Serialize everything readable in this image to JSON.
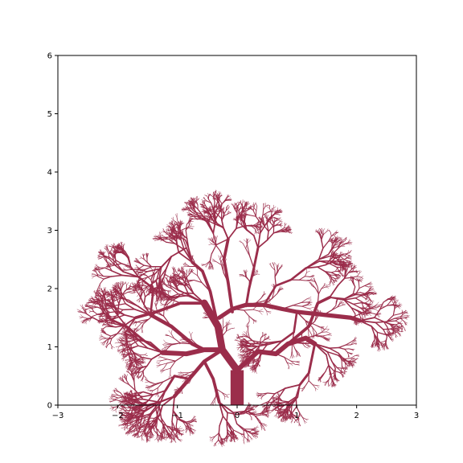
{
  "chart_data": {
    "type": "line",
    "title": "",
    "xlabel": "",
    "ylabel": "",
    "xlim": [
      -3,
      3
    ],
    "ylim": [
      0,
      6
    ],
    "x_ticks": [
      -3,
      -2,
      -1,
      0,
      1,
      2,
      3
    ],
    "x_tick_labels": [
      "−3",
      "−2",
      "−1",
      "0",
      "1",
      "2",
      "3"
    ],
    "y_ticks": [
      0,
      1,
      2,
      3,
      4,
      5,
      6
    ],
    "y_tick_labels": [
      "0",
      "1",
      "2",
      "3",
      "4",
      "5",
      "6"
    ],
    "grid": false,
    "legend": "none",
    "color": "#9b2d4b",
    "trunk": {
      "x": [
        0,
        0
      ],
      "y": [
        0,
        0.6
      ],
      "width": 0.22
    },
    "main_branches": [
      {
        "x": [
          0.0,
          -0.25,
          -0.32,
          -0.55
        ],
        "y": [
          0.6,
          0.95,
          1.35,
          1.75
        ],
        "width": 0.12
      },
      {
        "x": [
          -0.25,
          -0.55,
          -0.85,
          -1.25
        ],
        "y": [
          0.95,
          0.95,
          0.88,
          0.9
        ],
        "width": 0.08
      },
      {
        "x": [
          -0.55,
          -0.75,
          -1.1,
          -1.45
        ],
        "y": [
          0.95,
          1.05,
          1.35,
          1.55
        ],
        "width": 0.06
      },
      {
        "x": [
          -0.3,
          -0.08,
          0.15,
          0.45,
          0.75,
          1.0,
          1.45,
          1.9,
          2.05
        ],
        "y": [
          1.5,
          1.65,
          1.72,
          1.72,
          1.65,
          1.6,
          1.55,
          1.5,
          1.45
        ],
        "width": 0.07
      },
      {
        "x": [
          0.0,
          0.35,
          0.65,
          0.85,
          1.15,
          1.3
        ],
        "y": [
          0.6,
          0.92,
          0.88,
          1.05,
          1.15,
          1.05
        ],
        "width": 0.08
      },
      {
        "x": [
          0.85,
          1.2,
          1.35,
          1.55
        ],
        "y": [
          1.05,
          1.35,
          1.75,
          1.85
        ],
        "width": 0.05
      },
      {
        "x": [
          1.3,
          1.2,
          1.05
        ],
        "y": [
          1.05,
          0.55,
          0.35
        ],
        "width": 0.04
      },
      {
        "x": [
          -0.32,
          -0.45,
          -0.58,
          -0.75
        ],
        "y": [
          1.35,
          1.95,
          2.3,
          2.45
        ],
        "width": 0.05
      },
      {
        "x": [
          -0.08,
          -0.15,
          -0.22,
          -0.15
        ],
        "y": [
          1.6,
          2.1,
          2.5,
          2.85
        ],
        "width": 0.05
      },
      {
        "x": [
          0.15,
          0.2,
          0.28,
          0.35
        ],
        "y": [
          1.7,
          2.0,
          2.35,
          2.7
        ],
        "width": 0.04
      },
      {
        "x": [
          -0.55,
          -0.95,
          -1.35,
          -1.7
        ],
        "y": [
          1.75,
          1.75,
          1.6,
          1.5
        ],
        "width": 0.05
      },
      {
        "x": [
          -1.25,
          -1.55,
          -1.85
        ],
        "y": [
          0.9,
          1.1,
          1.35
        ],
        "width": 0.04
      },
      {
        "x": [
          -1.45,
          -1.4,
          -1.65
        ],
        "y": [
          1.55,
          2.0,
          2.2
        ],
        "width": 0.035
      },
      {
        "x": [
          -0.25,
          -0.55,
          -0.8,
          -1.05
        ],
        "y": [
          0.95,
          0.75,
          0.45,
          0.15
        ],
        "width": 0.06
      },
      {
        "x": [
          -0.55,
          -0.4,
          -0.3
        ],
        "y": [
          0.75,
          0.45,
          0.05
        ],
        "width": 0.05
      },
      {
        "x": [
          -0.8,
          -1.05,
          -1.2
        ],
        "y": [
          0.45,
          0.5,
          0.25
        ],
        "width": 0.04
      },
      {
        "x": [
          -1.05,
          -1.3
        ],
        "y": [
          0.15,
          0.05
        ],
        "width": 0.03
      },
      {
        "x": [
          0.45,
          0.65,
          0.9,
          1.15
        ],
        "y": [
          1.72,
          2.05,
          2.15,
          2.35
        ],
        "width": 0.035
      },
      {
        "x": [
          1.0,
          0.95,
          0.75
        ],
        "y": [
          1.6,
          1.25,
          1.1
        ],
        "width": 0.035
      },
      {
        "x": [
          -0.75,
          -0.85,
          -1.1
        ],
        "y": [
          2.45,
          2.7,
          2.55
        ],
        "width": 0.025
      },
      {
        "x": [
          -0.15,
          -0.35,
          -0.4
        ],
        "y": [
          2.85,
          2.75,
          2.95
        ],
        "width": 0.02
      }
    ]
  }
}
